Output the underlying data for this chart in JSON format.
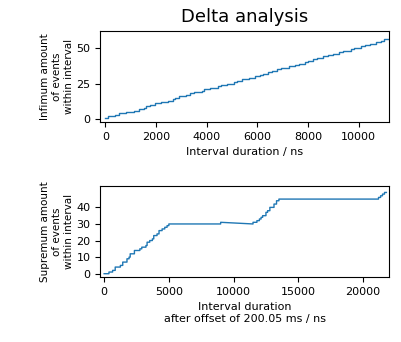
{
  "title": "Delta analysis",
  "top": {
    "xlabel": "Interval duration / ns",
    "ylabel": "Infimum amount\nof events\nwithin interval",
    "xlim": [
      -200,
      11200
    ],
    "ylim": [
      -2,
      62
    ],
    "yticks": [
      0,
      25,
      50
    ],
    "xticks": [
      0,
      2000,
      4000,
      6000,
      8000,
      10000
    ]
  },
  "bottom": {
    "xlabel": "Interval duration\nafter offset of 200.05 ms / ns",
    "ylabel": "Supremum amount\nof events\nwithin interval",
    "xlim": [
      -300,
      22000
    ],
    "ylim": [
      -2,
      53
    ],
    "yticks": [
      0,
      10,
      20,
      30,
      40
    ],
    "xticks": [
      0,
      5000,
      10000,
      15000,
      20000
    ]
  },
  "line_color": "#1f77b4"
}
